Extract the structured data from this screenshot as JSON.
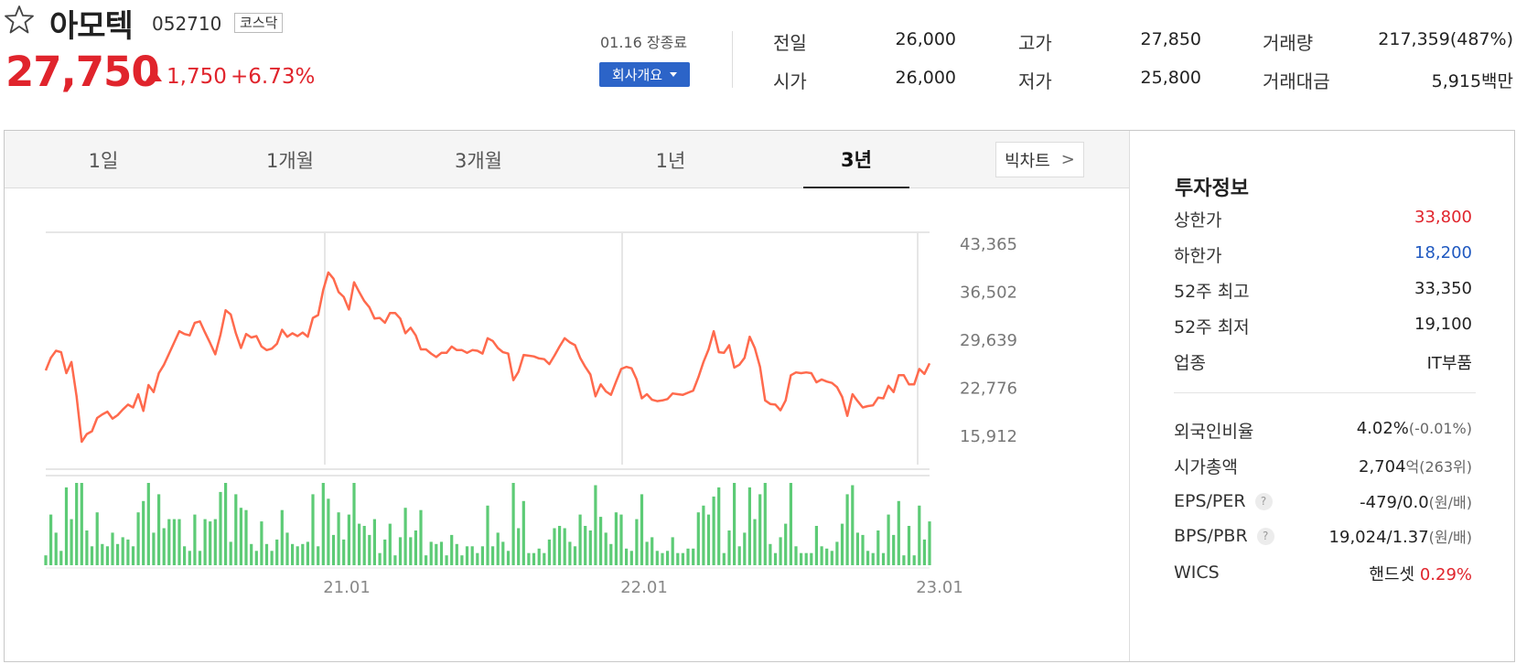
{
  "stock": {
    "name": "아모텍",
    "code": "052710",
    "market": "코스닥",
    "price": "27,750",
    "change": "1,750",
    "rate": "+6.73%"
  },
  "session": {
    "date_label": "01.16 장종료",
    "company_button": "회사개요"
  },
  "quote": [
    {
      "label": "전일",
      "value": "26,000",
      "color": "#222222"
    },
    {
      "label": "시가",
      "value": "26,000",
      "color": "#222222"
    },
    {
      "label": "고가",
      "value": "27,850",
      "color": "#e0242c"
    },
    {
      "label": "저가",
      "value": "25,800",
      "color": "#2059c0"
    },
    {
      "label": "거래량",
      "value": "217,359(487%)",
      "color": "#222222"
    },
    {
      "label": "거래대금",
      "value": "5,915백만",
      "color": "#222222"
    }
  ],
  "tabs": [
    "1일",
    "1개월",
    "3개월",
    "1년",
    "3년"
  ],
  "active_tab": "3년",
  "bigchart_label": "빅차트",
  "info": {
    "title": "투자정보",
    "rows": [
      {
        "label": "상한가",
        "value": "33,800",
        "unit": "",
        "color": "#e0242c"
      },
      {
        "label": "하한가",
        "value": "18,200",
        "unit": "",
        "color": "#2059c0"
      },
      {
        "label": "52주 최고",
        "value": "33,350",
        "unit": "",
        "color": "#222222"
      },
      {
        "label": "52주 최저",
        "value": "19,100",
        "unit": "",
        "color": "#222222"
      },
      {
        "label": "업종",
        "value": "IT부품",
        "unit": "",
        "color": "#222222"
      }
    ],
    "rows2": [
      {
        "label": "외국인비율",
        "value": "4.02%",
        "unit": "(-0.01%)",
        "help": false
      },
      {
        "label": "시가총액",
        "value": "2,704",
        "unit": "억(263위)",
        "help": false
      },
      {
        "label": "EPS/PER",
        "value": "-479/0.0",
        "unit": "(원/배)",
        "help": true
      },
      {
        "label": "BPS/PBR",
        "value": "19,024/1.37",
        "unit": "(원/배)",
        "help": true
      }
    ],
    "wics": {
      "label": "WICS",
      "value": "핸드셋",
      "pct": "0.29%"
    }
  },
  "chart_data": {
    "type": "line",
    "x_ticks": [
      "21.01",
      "22.01",
      "23.01"
    ],
    "y_ticks": [
      43365,
      36502,
      29639,
      22776,
      15912
    ],
    "y_tick_labels": [
      "43,365",
      "36,502",
      "29,639",
      "22,776",
      "15,912"
    ],
    "ylim": [
      15912,
      43365
    ],
    "line_color": "#ff6a4d",
    "volume_color": "#5dcb76",
    "price": [
      25200,
      27000,
      28000,
      27800,
      24800,
      26400,
      21500,
      15000,
      16100,
      16500,
      18400,
      18900,
      19300,
      18300,
      18800,
      19600,
      20300,
      19900,
      21800,
      19400,
      23100,
      22100,
      24800,
      26000,
      27600,
      29200,
      30800,
      30400,
      30200,
      32000,
      32200,
      30600,
      29100,
      27500,
      30300,
      33800,
      33200,
      30500,
      28400,
      30400,
      29900,
      30100,
      28600,
      28100,
      28300,
      29000,
      31000,
      30000,
      30500,
      30100,
      30600,
      30000,
      32700,
      33100,
      36700,
      39200,
      38300,
      36400,
      35700,
      33900,
      37800,
      36400,
      35100,
      34200,
      32600,
      32700,
      32000,
      33400,
      33400,
      32600,
      30500,
      31300,
      30200,
      28200,
      28200,
      27600,
      27100,
      27700,
      27700,
      28600,
      28100,
      28100,
      27700,
      28100,
      28000,
      27600,
      29800,
      29400,
      28400,
      27800,
      27600,
      23800,
      25000,
      27400,
      27300,
      27200,
      26900,
      26800,
      26100,
      27300,
      28600,
      29800,
      29200,
      28800,
      27000,
      25700,
      24600,
      21500,
      23200,
      22200,
      21700,
      23600,
      25400,
      25700,
      25500,
      23900,
      21200,
      21800,
      21000,
      20800,
      20900,
      21100,
      21900,
      21800,
      21700,
      22000,
      22300,
      24200,
      26400,
      28200,
      30800,
      27800,
      27700,
      28800,
      25600,
      26000,
      27000,
      30000,
      28400,
      25700,
      20900,
      20400,
      20300,
      19500,
      20900,
      24500,
      24900,
      24800,
      24900,
      24800,
      23500,
      23900,
      23600,
      23400,
      22800,
      21400,
      18700,
      21800,
      20800,
      19900,
      20100,
      20200,
      21300,
      21200,
      23000,
      22100,
      24500,
      24500,
      23200,
      23200,
      25400,
      24700,
      26200
    ]
  }
}
